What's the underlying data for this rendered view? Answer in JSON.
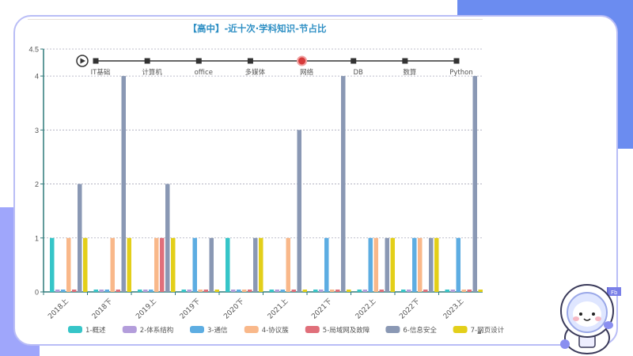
{
  "title": "【高中】-近十次·学科知识-节占比",
  "timeline": {
    "play_icon": "play-icon",
    "items": [
      "IT基础",
      "计算机",
      "office",
      "多媒体",
      "网络",
      "DB",
      "数算",
      "Python"
    ],
    "active_index": 4
  },
  "colors": {
    "accent_title": "#2e8fc4",
    "series": [
      "#36c5c8",
      "#b39ddb",
      "#5dade2",
      "#f9b88a",
      "#e06f7a",
      "#8a98b4",
      "#e3cf1a"
    ]
  },
  "chart_data": {
    "type": "bar",
    "title": "【高中】-近十次·学科知识-节占比",
    "xlabel": "",
    "ylabel": "",
    "ylim": [
      0,
      4.5
    ],
    "yticks": [
      0,
      1,
      2,
      3,
      4,
      4.5
    ],
    "grid": true,
    "legend_position": "bottom",
    "categories": [
      "2018上",
      "2018下",
      "2019上",
      "2019下",
      "2020下",
      "2021上",
      "2021下",
      "2022上",
      "2022下",
      "2023上"
    ],
    "series": [
      {
        "name": "1-概述",
        "values": [
          1,
          0,
          0,
          0,
          1,
          0,
          0,
          0,
          0,
          0
        ]
      },
      {
        "name": "2-体系结构",
        "values": [
          0,
          0,
          0,
          0,
          0,
          0,
          0,
          0,
          0,
          0
        ]
      },
      {
        "name": "3-通信",
        "values": [
          0,
          0,
          0,
          1,
          0,
          0,
          1,
          1,
          1,
          1
        ]
      },
      {
        "name": "4-协议簇",
        "values": [
          1,
          1,
          1,
          0,
          0,
          1,
          0,
          1,
          1,
          0
        ]
      },
      {
        "name": "5-局域网及故障",
        "values": [
          0,
          0,
          1,
          0,
          0,
          0,
          0,
          0,
          0,
          0
        ]
      },
      {
        "name": "6-信息安全",
        "values": [
          2,
          4,
          2,
          1,
          1,
          3,
          4,
          1,
          1,
          4
        ]
      },
      {
        "name": "7-网页设计",
        "values": [
          1,
          1,
          1,
          0,
          1,
          0,
          0,
          1,
          1,
          0
        ]
      }
    ]
  },
  "mascot": {
    "icon": "astronaut-mascot-icon",
    "flag_text": "Fb"
  }
}
